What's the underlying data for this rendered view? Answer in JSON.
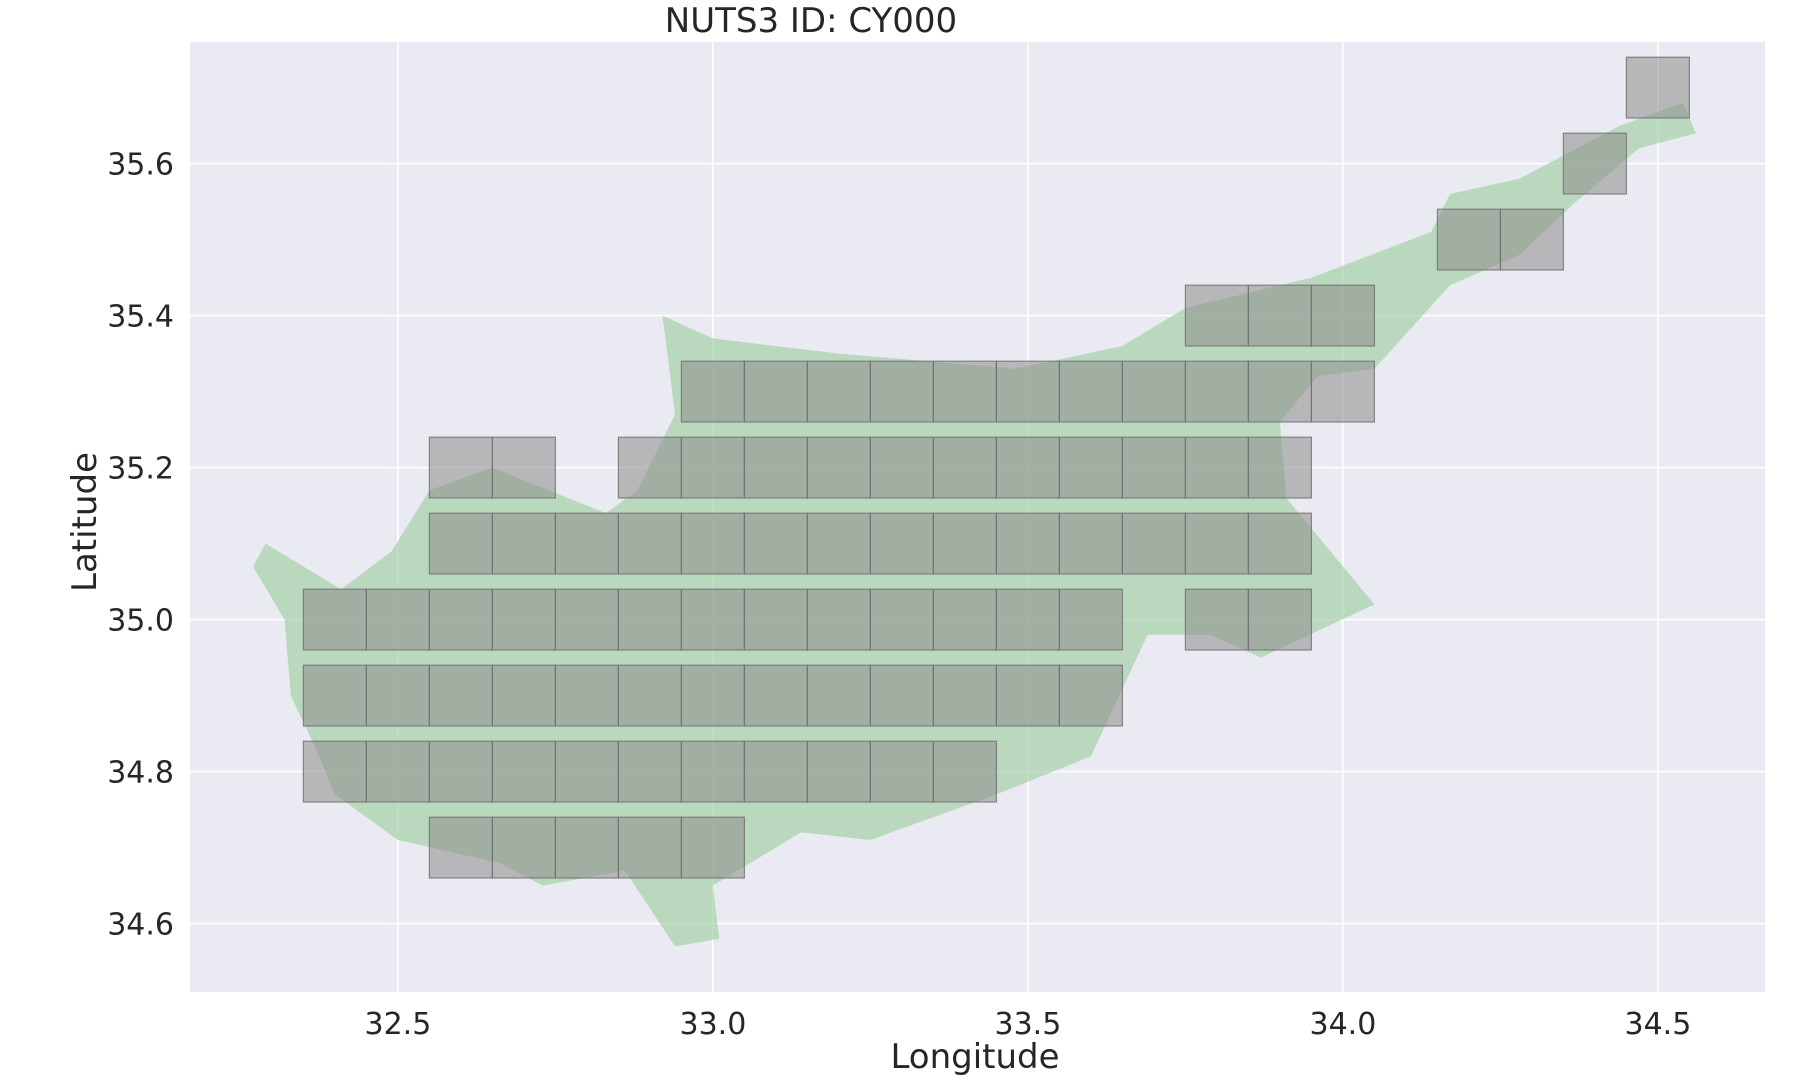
{
  "chart_data": {
    "type": "map",
    "title": "NUTS3 ID: CY000",
    "xlabel": "Longitude",
    "ylabel": "Latitude",
    "xlim": [
      32.17,
      34.67
    ],
    "ylim": [
      34.51,
      35.76
    ],
    "xticks": [
      32.5,
      33.0,
      33.5,
      34.0,
      34.5
    ],
    "xtick_labels": [
      "32.5",
      "33.0",
      "33.5",
      "34.0",
      "34.5"
    ],
    "yticks": [
      34.6,
      34.8,
      35.0,
      35.2,
      35.4,
      35.6
    ],
    "ytick_labels": [
      "34.6",
      "34.8",
      "35.0",
      "35.2",
      "35.4",
      "35.6"
    ],
    "grid": true,
    "background_color": "#eaeaf2",
    "region_color": "#a8d1a8",
    "cell_color": "#8c8c8c",
    "cell_size_deg": 0.1,
    "region_outline": [
      [
        32.27,
        35.07
      ],
      [
        32.29,
        35.1
      ],
      [
        32.41,
        35.04
      ],
      [
        32.49,
        35.09
      ],
      [
        32.55,
        35.17
      ],
      [
        32.65,
        35.2
      ],
      [
        32.83,
        35.14
      ],
      [
        32.88,
        35.17
      ],
      [
        32.94,
        35.27
      ],
      [
        32.92,
        35.4
      ],
      [
        33.0,
        35.37
      ],
      [
        33.2,
        35.35
      ],
      [
        33.48,
        35.33
      ],
      [
        33.65,
        35.36
      ],
      [
        33.75,
        35.41
      ],
      [
        33.95,
        35.45
      ],
      [
        34.14,
        35.51
      ],
      [
        34.17,
        35.56
      ],
      [
        34.28,
        35.58
      ],
      [
        34.44,
        35.65
      ],
      [
        34.54,
        35.68
      ],
      [
        34.56,
        35.64
      ],
      [
        34.47,
        35.62
      ],
      [
        34.37,
        35.55
      ],
      [
        34.28,
        35.48
      ],
      [
        34.17,
        35.44
      ],
      [
        34.05,
        35.33
      ],
      [
        33.96,
        35.32
      ],
      [
        33.9,
        35.26
      ],
      [
        33.91,
        35.16
      ],
      [
        33.96,
        35.11
      ],
      [
        34.05,
        35.02
      ],
      [
        33.87,
        34.95
      ],
      [
        33.79,
        34.98
      ],
      [
        33.69,
        34.98
      ],
      [
        33.6,
        34.82
      ],
      [
        33.45,
        34.77
      ],
      [
        33.25,
        34.71
      ],
      [
        33.14,
        34.72
      ],
      [
        33.0,
        34.65
      ],
      [
        33.01,
        34.58
      ],
      [
        32.94,
        34.57
      ],
      [
        32.86,
        34.67
      ],
      [
        32.73,
        34.65
      ],
      [
        32.66,
        34.68
      ],
      [
        32.5,
        34.71
      ],
      [
        32.4,
        34.77
      ],
      [
        32.37,
        34.83
      ],
      [
        32.33,
        34.9
      ],
      [
        32.32,
        35.0
      ]
    ],
    "cells": [
      [
        34.45,
        35.66
      ],
      [
        34.35,
        35.56
      ],
      [
        34.15,
        35.46
      ],
      [
        34.25,
        35.46
      ],
      [
        33.75,
        35.36
      ],
      [
        33.85,
        35.36
      ],
      [
        33.95,
        35.36
      ],
      [
        32.95,
        35.26
      ],
      [
        33.05,
        35.26
      ],
      [
        33.15,
        35.26
      ],
      [
        33.25,
        35.26
      ],
      [
        33.35,
        35.26
      ],
      [
        33.45,
        35.26
      ],
      [
        33.55,
        35.26
      ],
      [
        33.65,
        35.26
      ],
      [
        33.75,
        35.26
      ],
      [
        33.85,
        35.26
      ],
      [
        33.95,
        35.26
      ],
      [
        32.55,
        35.16
      ],
      [
        32.65,
        35.16
      ],
      [
        32.85,
        35.16
      ],
      [
        32.95,
        35.16
      ],
      [
        33.05,
        35.16
      ],
      [
        33.15,
        35.16
      ],
      [
        33.25,
        35.16
      ],
      [
        33.35,
        35.16
      ],
      [
        33.45,
        35.16
      ],
      [
        33.55,
        35.16
      ],
      [
        33.65,
        35.16
      ],
      [
        33.75,
        35.16
      ],
      [
        33.85,
        35.16
      ],
      [
        32.55,
        35.06
      ],
      [
        32.65,
        35.06
      ],
      [
        32.75,
        35.06
      ],
      [
        32.85,
        35.06
      ],
      [
        32.95,
        35.06
      ],
      [
        33.05,
        35.06
      ],
      [
        33.15,
        35.06
      ],
      [
        33.25,
        35.06
      ],
      [
        33.35,
        35.06
      ],
      [
        33.45,
        35.06
      ],
      [
        33.55,
        35.06
      ],
      [
        33.65,
        35.06
      ],
      [
        33.75,
        35.06
      ],
      [
        33.85,
        35.06
      ],
      [
        32.35,
        34.96
      ],
      [
        32.45,
        34.96
      ],
      [
        32.55,
        34.96
      ],
      [
        32.65,
        34.96
      ],
      [
        32.75,
        34.96
      ],
      [
        32.85,
        34.96
      ],
      [
        32.95,
        34.96
      ],
      [
        33.05,
        34.96
      ],
      [
        33.15,
        34.96
      ],
      [
        33.25,
        34.96
      ],
      [
        33.35,
        34.96
      ],
      [
        33.45,
        34.96
      ],
      [
        33.55,
        34.96
      ],
      [
        33.75,
        34.96
      ],
      [
        33.85,
        34.96
      ],
      [
        32.35,
        34.86
      ],
      [
        32.45,
        34.86
      ],
      [
        32.55,
        34.86
      ],
      [
        32.65,
        34.86
      ],
      [
        32.75,
        34.86
      ],
      [
        32.85,
        34.86
      ],
      [
        32.95,
        34.86
      ],
      [
        33.05,
        34.86
      ],
      [
        33.15,
        34.86
      ],
      [
        33.25,
        34.86
      ],
      [
        33.35,
        34.86
      ],
      [
        33.45,
        34.86
      ],
      [
        33.55,
        34.86
      ],
      [
        32.35,
        34.76
      ],
      [
        32.45,
        34.76
      ],
      [
        32.55,
        34.76
      ],
      [
        32.65,
        34.76
      ],
      [
        32.75,
        34.76
      ],
      [
        32.85,
        34.76
      ],
      [
        32.95,
        34.76
      ],
      [
        33.05,
        34.76
      ],
      [
        33.15,
        34.76
      ],
      [
        33.25,
        34.76
      ],
      [
        33.35,
        34.76
      ],
      [
        32.55,
        34.66
      ],
      [
        32.65,
        34.66
      ],
      [
        32.75,
        34.66
      ],
      [
        32.85,
        34.66
      ],
      [
        32.95,
        34.66
      ]
    ]
  }
}
